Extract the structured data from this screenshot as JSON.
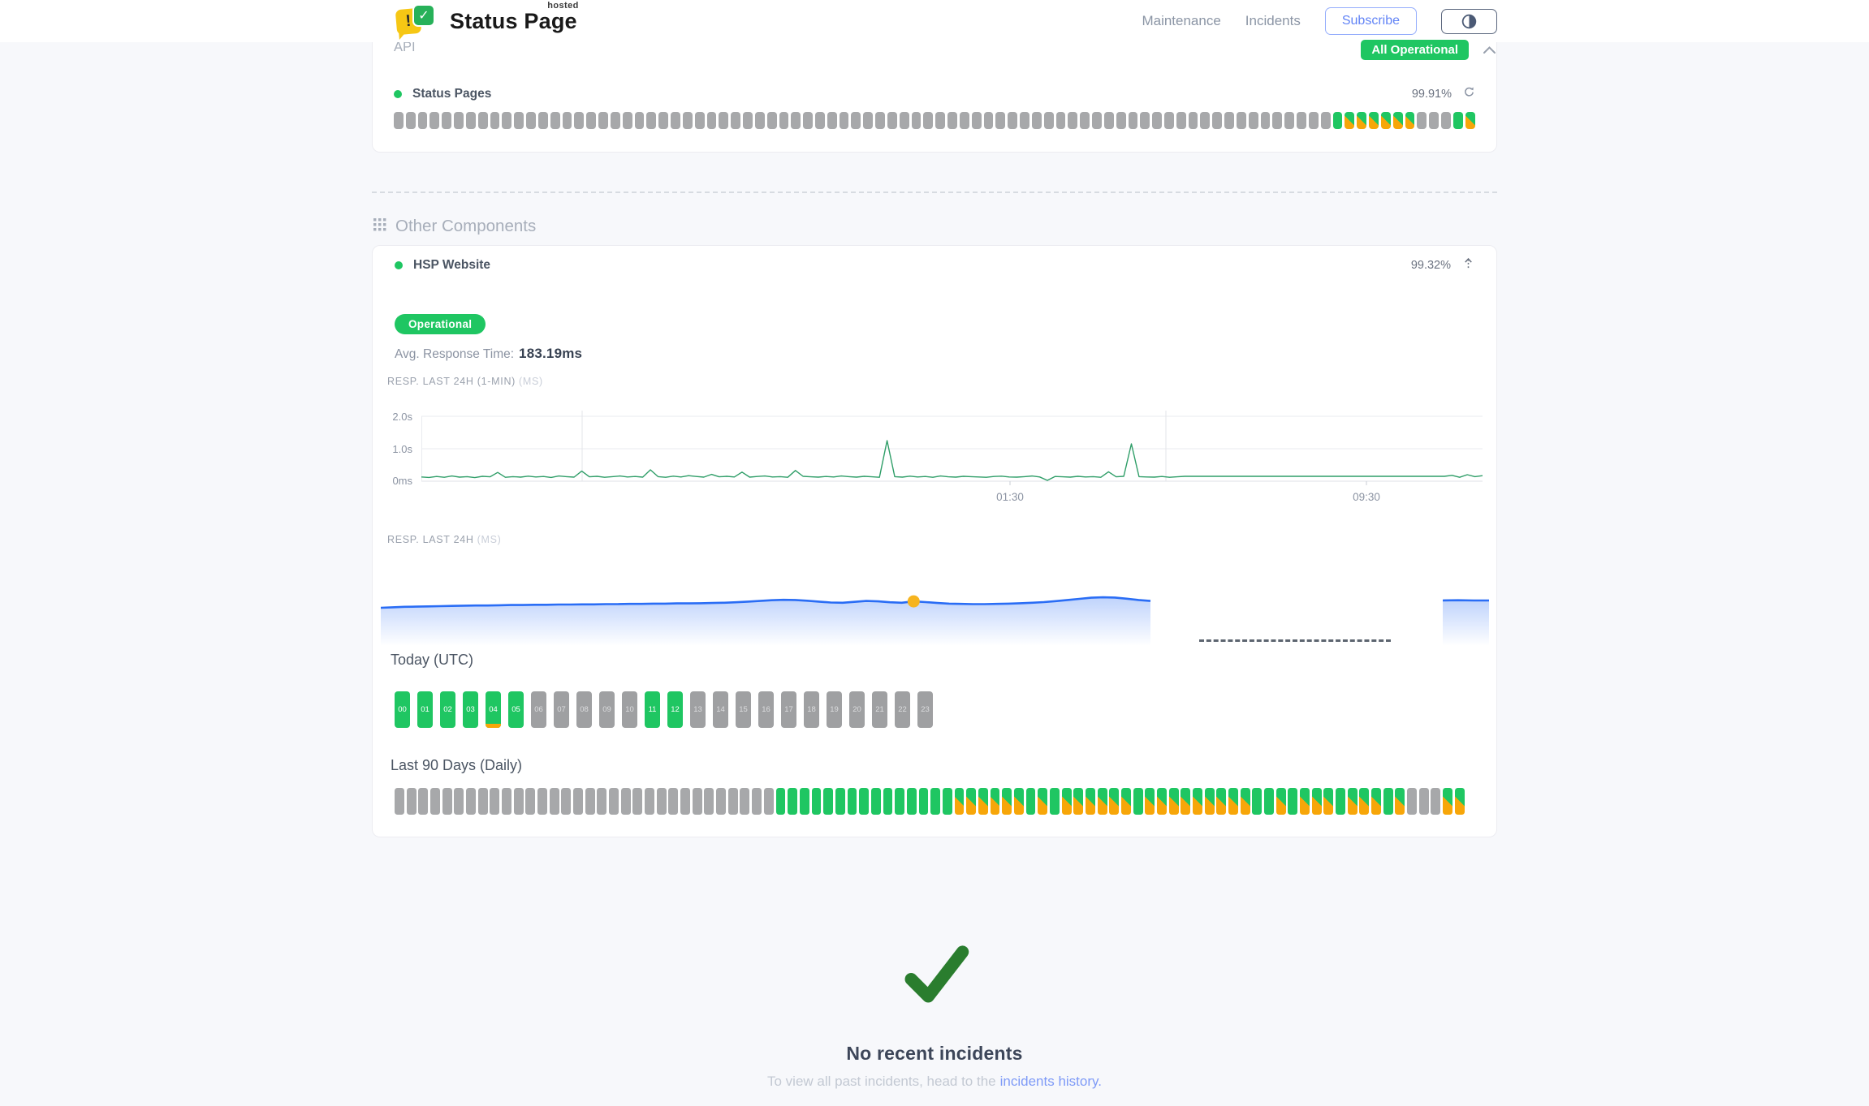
{
  "header": {
    "brand": {
      "name": "Status Page",
      "superscript": "hosted",
      "icon_exclaim": "!",
      "icon_check": "✓"
    },
    "nav": {
      "maintenance": "Maintenance",
      "incidents": "Incidents",
      "subscribe": "Subscribe"
    },
    "overall_status": "All Operational"
  },
  "api_section": {
    "title": "API",
    "component": {
      "name": "Status Pages",
      "uptime": "99.91%"
    },
    "bars": {
      "legend": {
        "x": "gray",
        "g": "green",
        "o": "green-orange-degraded"
      },
      "pattern": "xxxxxxxxxxxxxxxxxxxxxxxxxxxxxxxxxxxxxxxxxxxxxxxxxxxxxxxxxxxxxxxxxxxxxxxxxxxxxxgooooooxxxgo"
    }
  },
  "other_components": {
    "title": "Other Components"
  },
  "website": {
    "name": "HSP Website",
    "uptime": "99.32%",
    "status": "Operational",
    "avg_label": "Avg. Response Time:",
    "avg_value": "183.19ms",
    "chart_24h_1min": {
      "type": "line",
      "title": "RESP. LAST 24H (1-MIN)",
      "unit": "(MS)",
      "y_ticks": [
        "2.0s",
        "1.0s",
        "0ms"
      ],
      "y_max_ms": 2000,
      "x_ticks": [
        {
          "label": "01:30",
          "pos": 0.5547
        },
        {
          "label": "09:30",
          "pos": 0.8906
        }
      ],
      "values": [
        130,
        115,
        145,
        120,
        160,
        125,
        140,
        110,
        150,
        135,
        270,
        120,
        140,
        125,
        155,
        130,
        145,
        115,
        160,
        140,
        125,
        310,
        135,
        150,
        120,
        140,
        160,
        130,
        145,
        125,
        350,
        140,
        120,
        155,
        130,
        170,
        145,
        125,
        210,
        135,
        150,
        130,
        280,
        125,
        145,
        160,
        130,
        140,
        120,
        330,
        150,
        135,
        125,
        145,
        130,
        160,
        140,
        125,
        150,
        135,
        120,
        1250,
        140,
        125,
        155,
        130,
        145,
        120,
        160,
        135,
        125,
        150,
        140,
        130,
        120,
        145,
        155,
        130,
        125,
        140,
        160,
        130,
        25,
        145,
        135,
        125,
        150,
        130,
        140,
        120,
        290,
        135,
        150,
        1150,
        140,
        130,
        125,
        145,
        120,
        135,
        150,
        150,
        150,
        150,
        150,
        150,
        150,
        150,
        150,
        150,
        150,
        150,
        150,
        150,
        150,
        150,
        150,
        150,
        150,
        150,
        150,
        150,
        150,
        150,
        150,
        150,
        150,
        150,
        150,
        150,
        150,
        150,
        150,
        150,
        150,
        180,
        120,
        200,
        140,
        170
      ]
    },
    "chart_24h": {
      "type": "area",
      "title": "RESP. LAST 24H",
      "unit": "(MS)",
      "values": [
        168,
        170,
        172,
        173,
        174,
        175,
        176,
        177,
        178,
        178,
        179,
        180,
        180,
        181,
        181,
        182,
        182,
        183,
        183,
        184,
        184,
        185,
        185,
        186,
        186,
        187,
        187,
        188,
        189,
        190,
        192,
        195,
        198,
        201,
        203,
        202,
        199,
        195,
        191,
        190,
        194,
        198,
        196,
        192,
        190,
        196,
        193,
        189,
        186,
        185,
        184,
        184,
        185,
        186,
        188,
        190,
        193,
        197,
        202,
        207,
        212,
        214,
        213,
        208,
        202,
        198
      ],
      "marker_index": 45,
      "tail_values": [
        200,
        201,
        200,
        200
      ]
    },
    "today": {
      "title": "Today (UTC)",
      "hours": [
        {
          "label": "00",
          "state": "green"
        },
        {
          "label": "01",
          "state": "green"
        },
        {
          "label": "02",
          "state": "green"
        },
        {
          "label": "03",
          "state": "green"
        },
        {
          "label": "04",
          "state": "green",
          "marker": true
        },
        {
          "label": "05",
          "state": "green"
        },
        {
          "label": "06",
          "state": "gray"
        },
        {
          "label": "07",
          "state": "gray"
        },
        {
          "label": "08",
          "state": "gray"
        },
        {
          "label": "09",
          "state": "gray"
        },
        {
          "label": "10",
          "state": "gray"
        },
        {
          "label": "11",
          "state": "green"
        },
        {
          "label": "12",
          "state": "green"
        },
        {
          "label": "13",
          "state": "gray"
        },
        {
          "label": "14",
          "state": "gray"
        },
        {
          "label": "15",
          "state": "gray"
        },
        {
          "label": "16",
          "state": "gray"
        },
        {
          "label": "17",
          "state": "gray"
        },
        {
          "label": "18",
          "state": "gray"
        },
        {
          "label": "19",
          "state": "gray"
        },
        {
          "label": "20",
          "state": "gray"
        },
        {
          "label": "21",
          "state": "gray"
        },
        {
          "label": "22",
          "state": "gray"
        },
        {
          "label": "23",
          "state": "gray"
        }
      ]
    },
    "last90": {
      "title": "Last 90 Days (Daily)",
      "bars": {
        "legend": {
          "x": "gray",
          "g": "green",
          "o": "green-orange-degraded"
        },
        "pattern": "xxxxxxxxxxxxxxxxxxxxxxxxxxxxxxxxgggggggggggggggoooooogogoooooogoooooooooggogooogooogoxxxoo"
      }
    }
  },
  "incidents": {
    "heading": "No recent incidents",
    "note": "To view all past incidents, head to the",
    "link": "incidents history."
  },
  "colors": {
    "green": "#1fc662",
    "orange": "#f7a609",
    "gray_bar": "#a7a8aa",
    "line_green": "#2f9e68",
    "line_blue": "#2a6df5",
    "marker_yellow": "#f6b41f",
    "link_blue": "#7f9bf7",
    "check_green": "#2a7d2e"
  }
}
